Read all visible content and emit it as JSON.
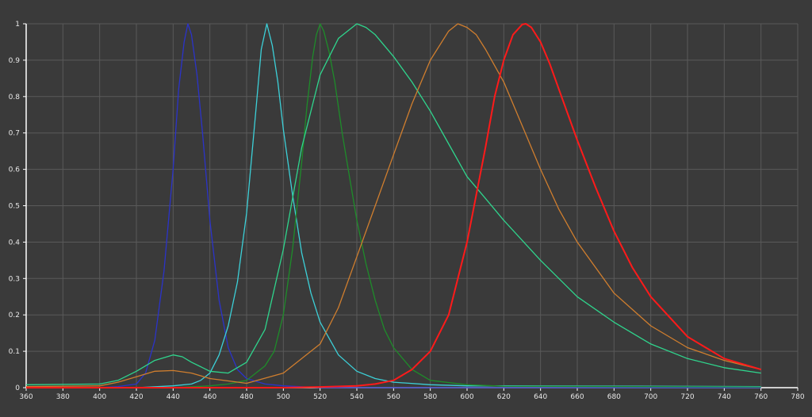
{
  "chart_data": {
    "type": "line",
    "title": "",
    "xlabel": "",
    "ylabel": "",
    "xlim": [
      360,
      780
    ],
    "ylim": [
      0,
      1
    ],
    "grid": true,
    "legend": "none",
    "x_ticks": [
      "360",
      "380",
      "400",
      "420",
      "440",
      "460",
      "480",
      "500",
      "520",
      "540",
      "560",
      "580",
      "600",
      "620",
      "640",
      "660",
      "680",
      "700",
      "720",
      "740",
      "760",
      "780"
    ],
    "y_ticks": [
      "0",
      "0.1",
      "0.2",
      "0.3",
      "0.4",
      "0.5",
      "0.6",
      "0.7",
      "0.8",
      "0.9",
      "1"
    ],
    "x_tick_values": [
      360,
      380,
      400,
      420,
      440,
      460,
      480,
      500,
      520,
      540,
      560,
      580,
      600,
      620,
      640,
      660,
      680,
      700,
      720,
      740,
      760,
      780
    ],
    "y_tick_values": [
      0,
      0.1,
      0.2,
      0.3,
      0.4,
      0.5,
      0.6,
      0.7,
      0.8,
      0.9,
      1
    ],
    "colors": {
      "background": "#3a3a3a",
      "grid": "#5a5a5a",
      "axis": "#ffffff",
      "text": "#e8e8e8"
    },
    "series": [
      {
        "color": "#2b33c9",
        "x": [
          360,
          400,
          410,
          420,
          425,
          430,
          435,
          440,
          443,
          446,
          448,
          450,
          453,
          456,
          460,
          465,
          470,
          475,
          480,
          490,
          500,
          520,
          760
        ],
        "y": [
          0,
          0,
          0.003,
          0.01,
          0.04,
          0.13,
          0.32,
          0.6,
          0.82,
          0.95,
          1,
          0.97,
          0.86,
          0.7,
          0.46,
          0.24,
          0.11,
          0.05,
          0.025,
          0.01,
          0.005,
          0,
          0
        ]
      },
      {
        "color": "#3cd0d8",
        "x": [
          360,
          420,
          440,
          450,
          455,
          460,
          465,
          470,
          475,
          480,
          485,
          488,
          491,
          494,
          497,
          500,
          505,
          510,
          515,
          520,
          530,
          540,
          550,
          560,
          580,
          600,
          620,
          760
        ],
        "y": [
          0,
          0,
          0.005,
          0.01,
          0.02,
          0.04,
          0.09,
          0.17,
          0.29,
          0.48,
          0.76,
          0.93,
          1,
          0.94,
          0.84,
          0.71,
          0.53,
          0.37,
          0.26,
          0.18,
          0.09,
          0.045,
          0.025,
          0.015,
          0.008,
          0.005,
          0.005,
          0.003
        ]
      },
      {
        "color": "#1e8c2a",
        "x": [
          360,
          440,
          460,
          470,
          480,
          490,
          495,
          500,
          505,
          510,
          513,
          516,
          518,
          520,
          522,
          525,
          528,
          532,
          536,
          540,
          545,
          550,
          555,
          560,
          570,
          580,
          600,
          620,
          760
        ],
        "y": [
          0,
          0,
          0.005,
          0.01,
          0.02,
          0.06,
          0.1,
          0.2,
          0.38,
          0.62,
          0.78,
          0.91,
          0.97,
          1,
          0.98,
          0.92,
          0.84,
          0.7,
          0.58,
          0.46,
          0.34,
          0.24,
          0.16,
          0.11,
          0.05,
          0.02,
          0.008,
          0.004,
          0.002
        ]
      },
      {
        "color": "#2fd58d",
        "x": [
          360,
          400,
          410,
          420,
          430,
          440,
          445,
          450,
          460,
          470,
          480,
          490,
          500,
          510,
          520,
          530,
          540,
          545,
          550,
          560,
          570,
          580,
          590,
          600,
          610,
          620,
          640,
          660,
          680,
          700,
          720,
          740,
          760
        ],
        "y": [
          0.008,
          0.01,
          0.02,
          0.045,
          0.075,
          0.09,
          0.085,
          0.07,
          0.045,
          0.04,
          0.07,
          0.16,
          0.38,
          0.66,
          0.86,
          0.96,
          1,
          0.99,
          0.97,
          0.91,
          0.84,
          0.76,
          0.67,
          0.58,
          0.52,
          0.46,
          0.35,
          0.25,
          0.18,
          0.12,
          0.08,
          0.055,
          0.04
        ]
      },
      {
        "color": "#d07e2e",
        "x": [
          360,
          400,
          410,
          420,
          430,
          440,
          450,
          460,
          480,
          500,
          520,
          530,
          540,
          550,
          560,
          570,
          580,
          590,
          595,
          600,
          605,
          610,
          620,
          630,
          640,
          650,
          660,
          680,
          700,
          720,
          740,
          760
        ],
        "y": [
          0.003,
          0.005,
          0.015,
          0.03,
          0.045,
          0.047,
          0.04,
          0.025,
          0.012,
          0.04,
          0.12,
          0.22,
          0.36,
          0.5,
          0.64,
          0.78,
          0.9,
          0.98,
          1,
          0.99,
          0.97,
          0.93,
          0.84,
          0.72,
          0.6,
          0.49,
          0.4,
          0.26,
          0.17,
          0.11,
          0.075,
          0.05
        ]
      },
      {
        "color": "#ff1a1a",
        "x": [
          360,
          500,
          520,
          540,
          550,
          560,
          570,
          580,
          590,
          600,
          610,
          615,
          620,
          625,
          630,
          632,
          635,
          640,
          645,
          650,
          660,
          670,
          680,
          690,
          700,
          720,
          740,
          760
        ],
        "y": [
          0,
          0,
          0.002,
          0.005,
          0.01,
          0.02,
          0.05,
          0.1,
          0.2,
          0.4,
          0.66,
          0.8,
          0.9,
          0.97,
          0.998,
          1,
          0.99,
          0.95,
          0.89,
          0.82,
          0.68,
          0.55,
          0.43,
          0.33,
          0.25,
          0.14,
          0.08,
          0.05
        ]
      }
    ]
  }
}
